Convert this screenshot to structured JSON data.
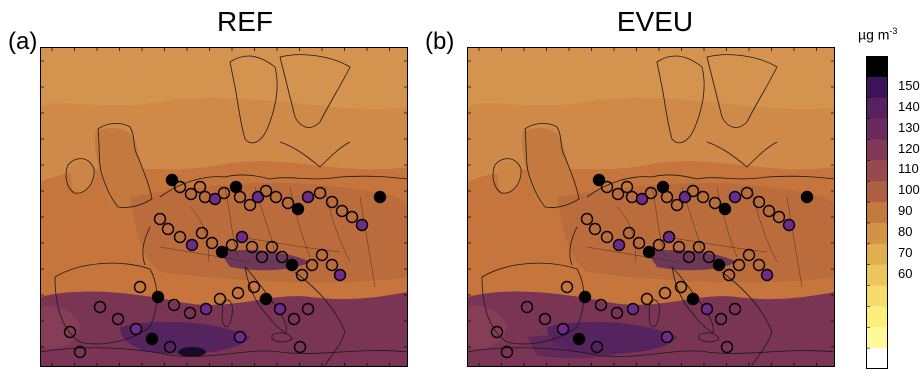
{
  "panels": [
    {
      "letter": "(a)",
      "title": "REF"
    },
    {
      "letter": "(b)",
      "title": "EVEU"
    }
  ],
  "colorbar": {
    "title": "µg m",
    "title_exponent": "-3",
    "labels": [
      "150",
      "140",
      "130",
      "120",
      "110",
      "100",
      "90",
      "80",
      "70",
      "60"
    ],
    "colors": [
      "#000000",
      "#3a1456",
      "#57205e",
      "#6b2a5e",
      "#803856",
      "#974a4c",
      "#ad5e43",
      "#c47a3f",
      "#d39344",
      "#e0ad4f",
      "#ecc65d",
      "#f4dd6d",
      "#fbef7c",
      "#fff99a",
      "#ffffff"
    ]
  },
  "map_colors": {
    "background": "#c6753c",
    "north": "#d08d4a",
    "land_mid": "#b96b3c",
    "south_sea": "#7a3555",
    "deep_purple": "#55245e",
    "coast_line": "#1a1a1a"
  },
  "stations_icon": "circle-marker"
}
